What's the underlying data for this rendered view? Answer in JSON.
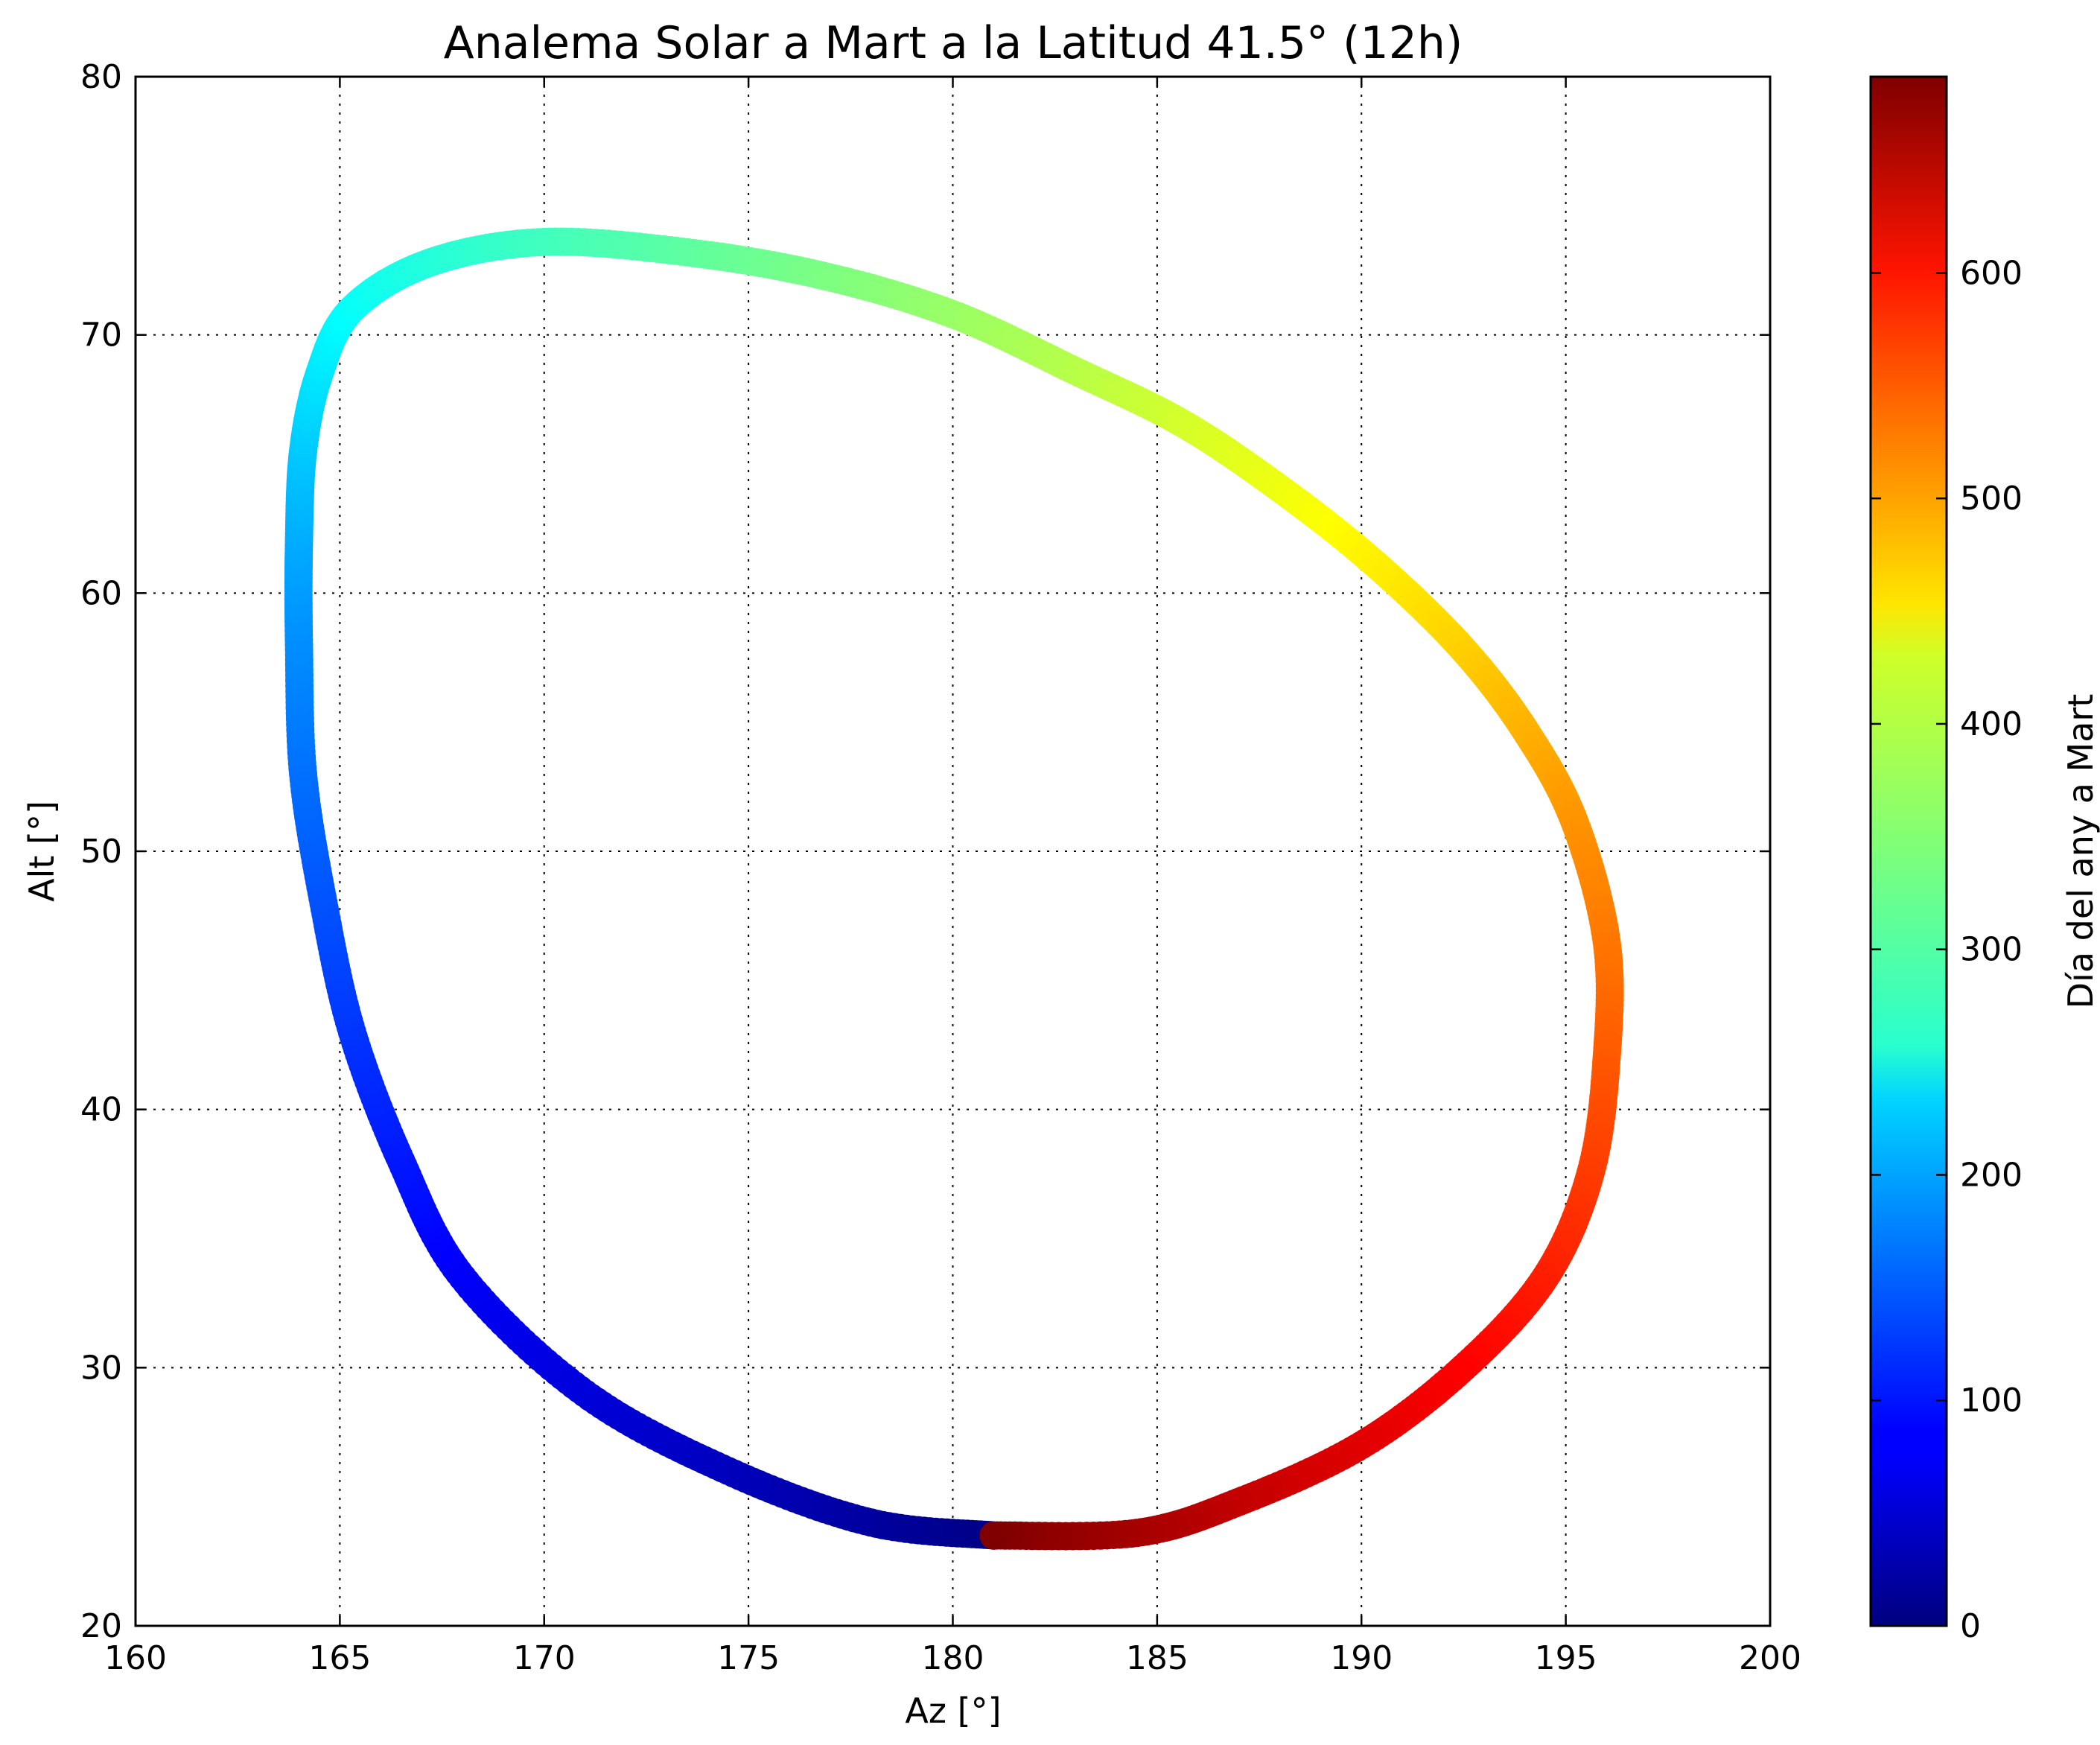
{
  "chart_data": {
    "type": "scatter",
    "title": "Analema Solar a Mart a la Latitud 41.5° (12h)",
    "xlabel": "Az [°]",
    "ylabel": "Alt [°]",
    "xlim": [
      160,
      200
    ],
    "ylim": [
      20,
      80
    ],
    "xticks": [
      "160",
      "165",
      "170",
      "175",
      "180",
      "185",
      "190",
      "195",
      "200"
    ],
    "yticks": [
      "20",
      "30",
      "40",
      "50",
      "60",
      "70",
      "80"
    ],
    "grid": true,
    "colormap": "jet",
    "colorbar": {
      "label": "Día del any a Mart",
      "range": [
        0,
        687
      ],
      "ticks": [
        "0",
        "100",
        "200",
        "300",
        "400",
        "500",
        "600"
      ]
    },
    "series": [
      {
        "values_note": "analemma path as [day, az, alt]",
        "points": [
          [
            0,
            181.0,
            23.5
          ],
          [
            20,
            178.0,
            24.0
          ],
          [
            40,
            174.5,
            26.0
          ],
          [
            60,
            171.0,
            29.0
          ],
          [
            80,
            168.0,
            33.5
          ],
          [
            100,
            166.5,
            38.0
          ],
          [
            120,
            165.3,
            43.0
          ],
          [
            140,
            164.6,
            48.0
          ],
          [
            160,
            164.1,
            53.0
          ],
          [
            180,
            164.0,
            58.0
          ],
          [
            200,
            164.0,
            62.0
          ],
          [
            220,
            164.1,
            65.5
          ],
          [
            240,
            164.5,
            68.5
          ],
          [
            260,
            165.3,
            71.0
          ],
          [
            280,
            167.2,
            72.8
          ],
          [
            300,
            170.0,
            73.6
          ],
          [
            320,
            173.5,
            73.2
          ],
          [
            340,
            176.8,
            72.3
          ],
          [
            360,
            180.0,
            70.8
          ],
          [
            380,
            183.0,
            68.6
          ],
          [
            400,
            185.7,
            66.5
          ],
          [
            420,
            188.3,
            63.7
          ],
          [
            440,
            190.5,
            60.9
          ],
          [
            460,
            192.5,
            57.8
          ],
          [
            480,
            194.0,
            54.7
          ],
          [
            500,
            195.2,
            51.2
          ],
          [
            520,
            196.0,
            46.5
          ],
          [
            540,
            196.0,
            42.0
          ],
          [
            560,
            195.6,
            37.5
          ],
          [
            580,
            194.5,
            33.5
          ],
          [
            600,
            192.5,
            30.0
          ],
          [
            620,
            190.0,
            27.0
          ],
          [
            640,
            187.0,
            24.8
          ],
          [
            660,
            184.5,
            23.6
          ],
          [
            687,
            181.0,
            23.5
          ]
        ]
      }
    ],
    "colors": {
      "axes": "#000000",
      "grid": "#000000",
      "background": "#ffffff"
    }
  }
}
